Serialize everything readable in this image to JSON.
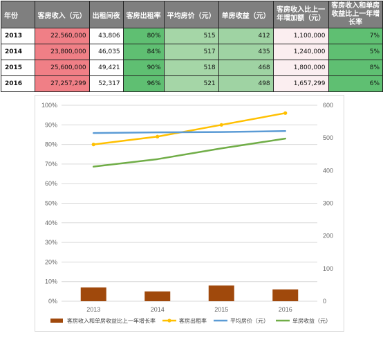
{
  "table": {
    "headers": {
      "year": "年份",
      "revenue": "客房收入（元）",
      "nights": "出租间夜",
      "occupancy": "客房出租率",
      "avg_price": "平均房价（元）",
      "room_yield": "单房收益（元）",
      "increase": "客房收入比上一年增加额（元）",
      "growth": "客房收入和单房收益比上一年增长率"
    },
    "rows": [
      {
        "year": "2013",
        "revenue": "22,560,000",
        "nights": "43,806",
        "occupancy": "80%",
        "avg_price": "515",
        "room_yield": "412",
        "increase": "1,100,000",
        "growth": "7%"
      },
      {
        "year": "2014",
        "revenue": "23,800,000",
        "nights": "46,035",
        "occupancy": "84%",
        "avg_price": "517",
        "room_yield": "435",
        "increase": "1,240,000",
        "growth": "5%"
      },
      {
        "year": "2015",
        "revenue": "25,600,000",
        "nights": "49,421",
        "occupancy": "90%",
        "avg_price": "518",
        "room_yield": "468",
        "increase": "1,800,000",
        "growth": "8%"
      },
      {
        "year": "2016",
        "revenue": "27,257,299",
        "nights": "52,317",
        "occupancy": "96%",
        "avg_price": "521",
        "room_yield": "498",
        "increase": "1,657,299",
        "growth": "6%"
      }
    ]
  },
  "chart_data": {
    "type": "bar",
    "categories": [
      "2013",
      "2014",
      "2015",
      "2016"
    ],
    "y_left": {
      "ticks": [
        "0%",
        "10%",
        "20%",
        "30%",
        "40%",
        "50%",
        "60%",
        "70%",
        "80%",
        "90%",
        "100%"
      ],
      "range": [
        0,
        1
      ]
    },
    "y_right": {
      "ticks": [
        "0",
        "100",
        "200",
        "300",
        "400",
        "500",
        "600"
      ],
      "range": [
        0,
        600
      ]
    },
    "series": [
      {
        "name": "客房收入和单房收益比上一年增长率",
        "type": "bar",
        "axis": "left",
        "color": "#a0490c",
        "values": [
          0.07,
          0.05,
          0.08,
          0.06
        ]
      },
      {
        "name": "客房出租率",
        "type": "line",
        "axis": "left",
        "color": "#ffc000",
        "marker": "circle",
        "values": [
          0.8,
          0.84,
          0.9,
          0.96
        ]
      },
      {
        "name": "平均房价（元）",
        "type": "line",
        "axis": "right",
        "color": "#5b9bd5",
        "values": [
          515,
          517,
          518,
          521
        ]
      },
      {
        "name": "单房收益（元）",
        "type": "line",
        "axis": "right",
        "color": "#70ad47",
        "values": [
          412,
          435,
          468,
          498
        ]
      }
    ],
    "legend_position": "bottom",
    "grid": "horizontal"
  }
}
